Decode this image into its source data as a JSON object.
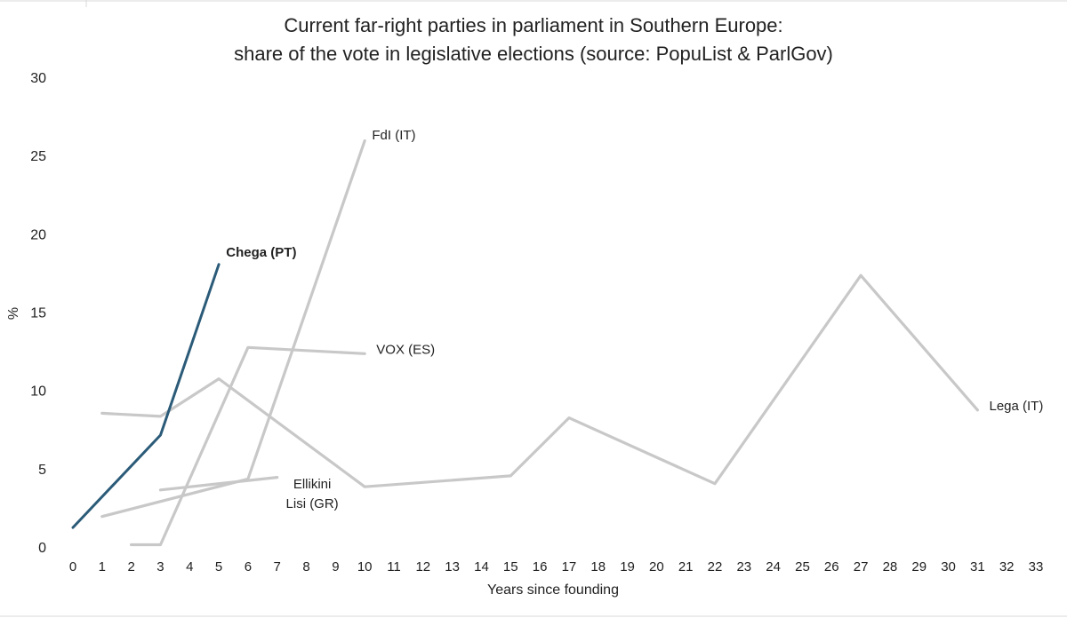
{
  "chart_data": {
    "type": "line",
    "title_lines": [
      "Current far-right parties in parliament in Southern Europe:",
      "share of the vote in legislative elections (source: PopuList & ParlGov)"
    ],
    "xlabel": "Years since founding",
    "ylabel": "%",
    "xlim": [
      0,
      33
    ],
    "ylim": [
      0,
      30
    ],
    "x_ticks": [
      0,
      1,
      2,
      3,
      4,
      5,
      6,
      7,
      8,
      9,
      10,
      11,
      12,
      13,
      14,
      15,
      16,
      17,
      18,
      19,
      20,
      21,
      22,
      23,
      24,
      25,
      26,
      27,
      28,
      29,
      30,
      31,
      32,
      33
    ],
    "y_ticks": [
      0,
      5,
      10,
      15,
      20,
      25,
      30
    ],
    "grid": false,
    "legend": "none (series labeled directly on chart)",
    "series": [
      {
        "name": "Lega (IT)",
        "color": "#c8c8c8",
        "highlight": false,
        "x": [
          1,
          3,
          5,
          10,
          15,
          17,
          22,
          27,
          31
        ],
        "y": [
          8.6,
          8.4,
          10.8,
          3.9,
          4.6,
          8.3,
          4.1,
          17.4,
          8.8
        ]
      },
      {
        "name": "VOX (ES)",
        "color": "#c8c8c8",
        "highlight": false,
        "x": [
          2,
          3,
          6,
          10
        ],
        "y": [
          0.2,
          0.2,
          12.8,
          12.4
        ]
      },
      {
        "name": "FdI (IT)",
        "color": "#c8c8c8",
        "highlight": false,
        "x": [
          1,
          6,
          10
        ],
        "y": [
          2.0,
          4.4,
          26.0
        ]
      },
      {
        "name": "Ellikini Lisi (GR)",
        "color": "#c8c8c8",
        "highlight": false,
        "x": [
          3,
          7
        ],
        "y": [
          3.7,
          4.5
        ]
      },
      {
        "name": "Chega (PT)",
        "color": "#2b5b78",
        "highlight": true,
        "x": [
          0,
          3,
          5
        ],
        "y": [
          1.3,
          7.2,
          18.1
        ]
      }
    ],
    "annotations": [
      {
        "series": "Chega (PT)",
        "lines": [
          "Chega (PT)"
        ],
        "bold": true,
        "at_x": 5.25,
        "at_y": 18.6
      },
      {
        "series": "FdI (IT)",
        "lines": [
          "FdI (IT)"
        ],
        "bold": false,
        "at_x": 10.25,
        "at_y": 26.1
      },
      {
        "series": "VOX (ES)",
        "lines": [
          "VOX (ES)"
        ],
        "bold": false,
        "at_x": 10.4,
        "at_y": 12.4
      },
      {
        "series": "Lega (IT)",
        "lines": [
          "Lega (IT)"
        ],
        "bold": false,
        "at_x": 31.4,
        "at_y": 8.8
      },
      {
        "series": "Ellikini Lisi (GR)",
        "lines": [
          "Ellikini",
          "Lisi (GR)"
        ],
        "bold": false,
        "at_x": 8.2,
        "at_y": 3.8
      }
    ]
  }
}
